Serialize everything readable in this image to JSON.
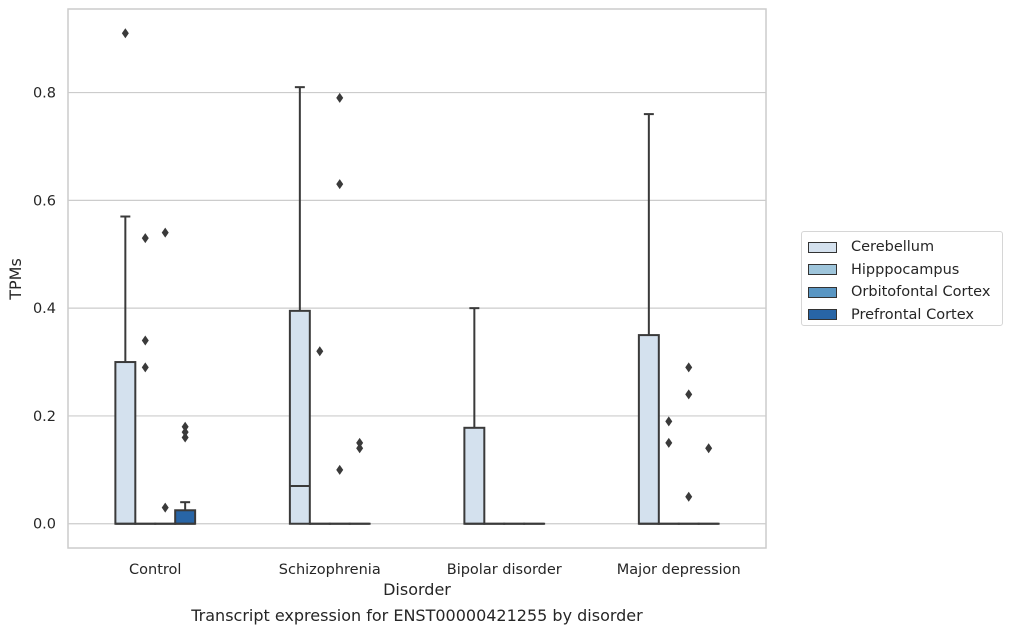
{
  "caption": "Transcript expression for ENST00000421255 by disorder",
  "chart_data": {
    "type": "box",
    "xlabel": "Disorder",
    "ylabel": "TPMs",
    "ylim": [
      -0.045,
      0.955
    ],
    "yticks": [
      0.0,
      0.2,
      0.4,
      0.6,
      0.8
    ],
    "ytick_labels": [
      "0.0",
      "0.2",
      "0.4",
      "0.6",
      "0.8"
    ],
    "grid": "horizontal",
    "legend_position": "right",
    "categories": [
      "Control",
      "Schizophrenia",
      "Bipolar disorder",
      "Major depression"
    ],
    "series": [
      {
        "name": "Cerebellum",
        "color": "#d4e1ee",
        "boxes": [
          {
            "q1": 0.0,
            "median": 0.0,
            "q3": 0.3,
            "whisker_low": 0.0,
            "whisker_high": 0.57,
            "outliers": [
              0.91
            ]
          },
          {
            "q1": 0.0,
            "median": 0.07,
            "q3": 0.395,
            "whisker_low": 0.0,
            "whisker_high": 0.81,
            "outliers": []
          },
          {
            "q1": 0.0,
            "median": 0.0,
            "q3": 0.178,
            "whisker_low": 0.0,
            "whisker_high": 0.4,
            "outliers": []
          },
          {
            "q1": 0.0,
            "median": 0.0,
            "q3": 0.35,
            "whisker_low": 0.0,
            "whisker_high": 0.76,
            "outliers": []
          }
        ]
      },
      {
        "name": "Hipppocampus",
        "color": "#9ec5db",
        "boxes": [
          {
            "q1": 0.0,
            "median": 0.0,
            "q3": 0.0,
            "whisker_low": 0.0,
            "whisker_high": 0.0,
            "outliers": [
              0.29,
              0.34,
              0.53
            ]
          },
          {
            "q1": 0.0,
            "median": 0.0,
            "q3": 0.0,
            "whisker_low": 0.0,
            "whisker_high": 0.0,
            "outliers": [
              0.32
            ]
          },
          {
            "q1": 0.0,
            "median": 0.0,
            "q3": 0.0,
            "whisker_low": 0.0,
            "whisker_high": 0.0,
            "outliers": []
          },
          {
            "q1": 0.0,
            "median": 0.0,
            "q3": 0.0,
            "whisker_low": 0.0,
            "whisker_high": 0.0,
            "outliers": [
              0.15,
              0.19
            ]
          }
        ]
      },
      {
        "name": "Orbitofontal Cortex",
        "color": "#5996c3",
        "boxes": [
          {
            "q1": 0.0,
            "median": 0.0,
            "q3": 0.0,
            "whisker_low": 0.0,
            "whisker_high": 0.0,
            "outliers": [
              0.03,
              0.54
            ]
          },
          {
            "q1": 0.0,
            "median": 0.0,
            "q3": 0.0,
            "whisker_low": 0.0,
            "whisker_high": 0.0,
            "outliers": [
              0.1,
              0.63,
              0.79
            ]
          },
          {
            "q1": 0.0,
            "median": 0.0,
            "q3": 0.0,
            "whisker_low": 0.0,
            "whisker_high": 0.0,
            "outliers": []
          },
          {
            "q1": 0.0,
            "median": 0.0,
            "q3": 0.0,
            "whisker_low": 0.0,
            "whisker_high": 0.0,
            "outliers": [
              0.05,
              0.24,
              0.29
            ]
          }
        ]
      },
      {
        "name": "Prefrontal Cortex",
        "color": "#2865a6",
        "boxes": [
          {
            "q1": 0.0,
            "median": 0.0,
            "q3": 0.025,
            "whisker_low": 0.0,
            "whisker_high": 0.04,
            "outliers": [
              0.16,
              0.17,
              0.18
            ]
          },
          {
            "q1": 0.0,
            "median": 0.0,
            "q3": 0.0,
            "whisker_low": 0.0,
            "whisker_high": 0.0,
            "outliers": [
              0.14,
              0.15
            ]
          },
          {
            "q1": 0.0,
            "median": 0.0,
            "q3": 0.0,
            "whisker_low": 0.0,
            "whisker_high": 0.0,
            "outliers": []
          },
          {
            "q1": 0.0,
            "median": 0.0,
            "q3": 0.0,
            "whisker_low": 0.0,
            "whisker_high": 0.0,
            "outliers": [
              0.14
            ]
          }
        ]
      }
    ]
  }
}
